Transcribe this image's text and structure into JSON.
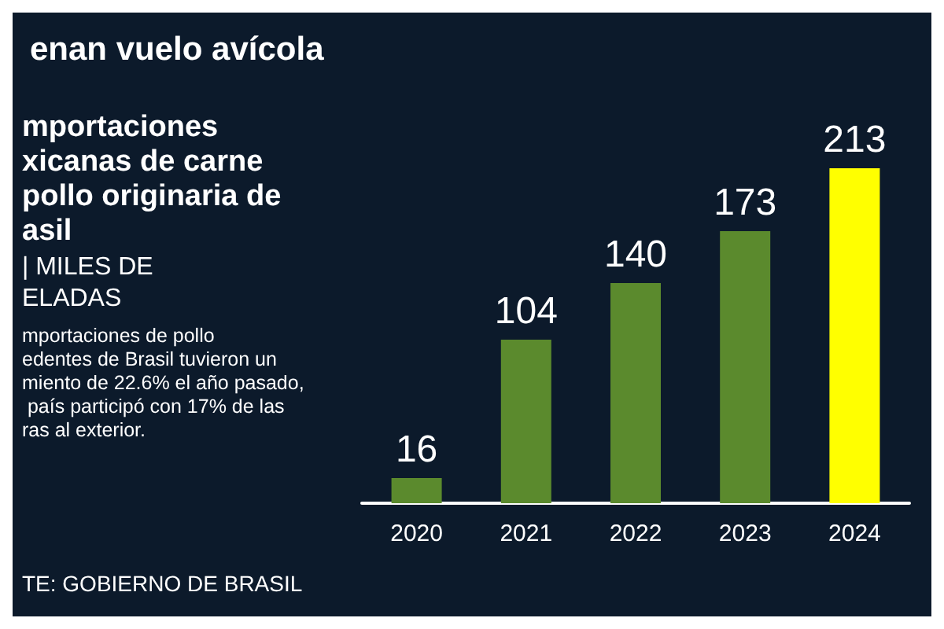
{
  "chart_data": {
    "type": "bar",
    "title": "enan vuelo avícola",
    "subtitle": "mportaciones\nxicanas de carne\npollo originaria de\nasil",
    "annotations": [
      "| MILES DE\nELADAS",
      "mportaciones de pollo\nedentes de Brasil tuvieron un\nmiento de 22.6% el año pasado,\n país participó con 17% de las\nras al exterior.",
      "TE: GOBIERNO DE BRASIL"
    ],
    "categories": [
      "2020",
      "2021",
      "2022",
      "2023",
      "2024"
    ],
    "values": [
      16,
      104,
      140,
      173,
      213
    ],
    "colors": [
      "#5b8a2d",
      "#5b8a2d",
      "#5b8a2d",
      "#5b8a2d",
      "#ffff00"
    ],
    "data_labels": true
  }
}
